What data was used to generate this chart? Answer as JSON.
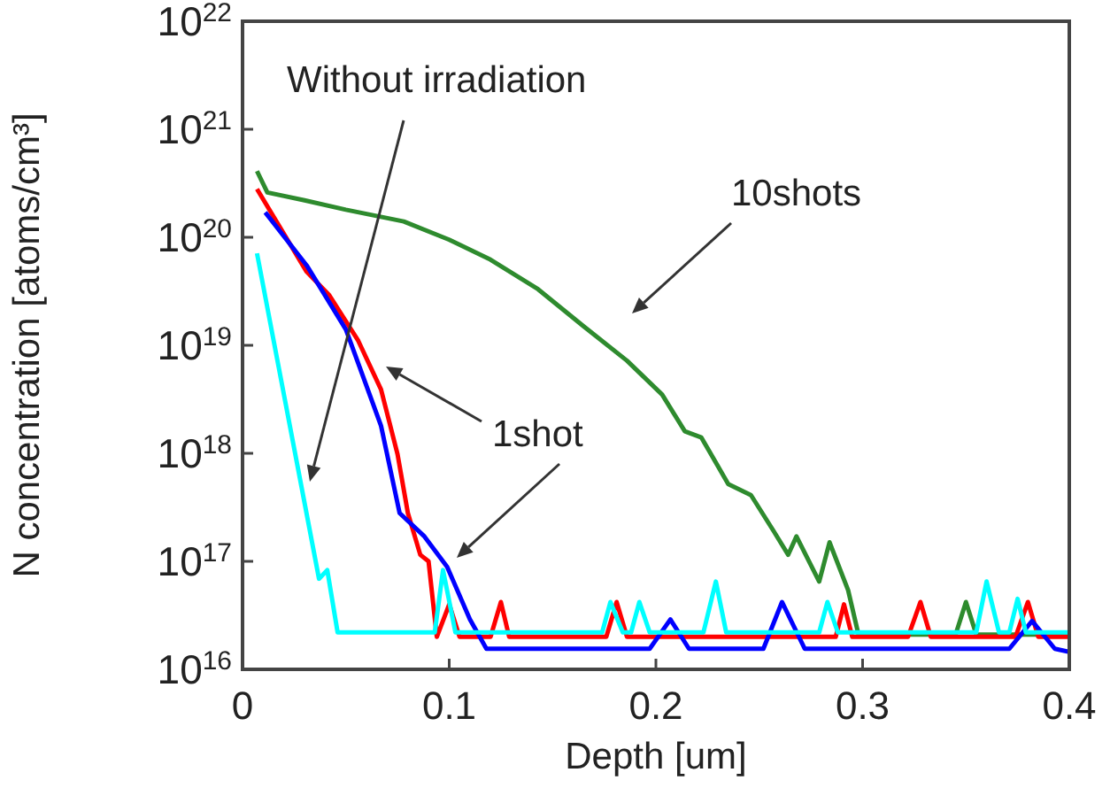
{
  "chart_data": {
    "type": "line",
    "xlabel": "Depth [um]",
    "ylabel": "N concentration [atoms/cm³]",
    "xlim": [
      0,
      0.4
    ],
    "xticks": [
      0,
      0.1,
      0.2,
      0.3,
      0.4
    ],
    "ylim": [
      1e+16,
      1e+22
    ],
    "log": true,
    "yticks": [
      {
        "value": 1e+16,
        "label": "10$^{16}$"
      },
      {
        "value": 1e+17,
        "label": "10$^{17}$"
      },
      {
        "value": 1e+18,
        "label": "10$^{18}$"
      },
      {
        "value": 1e+19,
        "label": "10$^{19}$"
      },
      {
        "value": 1e+20,
        "label": "10$^{20}$"
      },
      {
        "value": 1e+21,
        "label": "10$^{21}$"
      },
      {
        "value": 1e+22,
        "label": "10$^{22}$"
      }
    ],
    "grid": false,
    "marker": "none",
    "line_style": "solid",
    "annotations": [
      "Without irradiation",
      "10shots",
      "1shot"
    ],
    "series": [
      {
        "color": "#2e8b2e",
        "x": [
          0.007,
          0.012,
          0.03,
          0.05,
          0.078,
          0.1,
          0.12,
          0.143,
          0.165,
          0.186,
          0.203,
          0.214,
          0.222,
          0.235,
          0.246,
          0.257,
          0.264,
          0.268,
          0.279,
          0.284,
          0.293,
          0.298,
          0.345,
          0.35,
          0.355,
          0.4
        ],
        "values": [
          4.1e+20,
          2.6e+20,
          2.2e+20,
          1.8e+20,
          1.4e+20,
          9.5e+19,
          6.2e+19,
          3.3e+19,
          1.5e+19,
          7.2e+18,
          3.5e+18,
          1.6e+18,
          1.4e+18,
          5.2e+17,
          4.1e+17,
          1.9e+17,
          1.15e+17,
          1.7e+17,
          6.5e+16,
          1.5e+17,
          5.4e+16,
          2.1e+16,
          2.1e+16,
          4.2e+16,
          2.1e+16,
          2.1e+16
        ]
      },
      {
        "color": "#ff0000",
        "x": [
          0.007,
          0.031,
          0.042,
          0.056,
          0.067,
          0.075,
          0.08,
          0.086,
          0.09,
          0.094,
          0.1,
          0.105,
          0.12,
          0.125,
          0.129,
          0.176,
          0.181,
          0.186,
          0.287,
          0.291,
          0.295,
          0.322,
          0.328,
          0.333,
          0.374,
          0.38,
          0.385,
          0.4
        ],
        "values": [
          2.8e+20,
          4.8e+19,
          2.9e+19,
          1.1e+19,
          3.9e+18,
          9.8e+17,
          2.8e+17,
          1.15e+17,
          1e+17,
          2e+16,
          4e+16,
          2e+16,
          2e+16,
          4.2e+16,
          2e+16,
          2e+16,
          4.2e+16,
          2e+16,
          2e+16,
          4e+16,
          2e+16,
          2e+16,
          4.2e+16,
          2e+16,
          2e+16,
          4.2e+16,
          2e+16,
          2e+16
        ]
      },
      {
        "color": "#0000ff",
        "x": [
          0.011,
          0.031,
          0.05,
          0.067,
          0.076,
          0.088,
          0.099,
          0.11,
          0.118,
          0.197,
          0.207,
          0.216,
          0.252,
          0.261,
          0.272,
          0.371,
          0.382,
          0.393,
          0.4
        ],
        "values": [
          1.7e+20,
          5.5e+19,
          1.4e+19,
          1.8e+18,
          2.8e+17,
          1.7e+17,
          8.9e+16,
          2.9e+16,
          1.55e+16,
          1.55e+16,
          2.9e+16,
          1.55e+16,
          1.55e+16,
          4.2e+16,
          1.55e+16,
          1.55e+16,
          2.8e+16,
          1.55e+16,
          1.45e+16
        ]
      },
      {
        "color": "#00ffff",
        "x": [
          0.007,
          0.037,
          0.041,
          0.046,
          0.093,
          0.097,
          0.103,
          0.174,
          0.178,
          0.184,
          0.188,
          0.192,
          0.197,
          0.223,
          0.229,
          0.234,
          0.279,
          0.283,
          0.288,
          0.355,
          0.36,
          0.366,
          0.371,
          0.375,
          0.379,
          0.4
        ],
        "values": [
          7.1e+19,
          6.9e+16,
          8.3e+16,
          2.2e+16,
          2.2e+16,
          8.3e+16,
          2.2e+16,
          2.2e+16,
          4.2e+16,
          2.2e+16,
          2.2e+16,
          4.2e+16,
          2.2e+16,
          2.2e+16,
          6.5e+16,
          2.2e+16,
          2.2e+16,
          4.2e+16,
          2.2e+16,
          2.2e+16,
          6.5e+16,
          2.2e+16,
          2.2e+16,
          4.5e+16,
          2.2e+16,
          2.2e+16
        ]
      }
    ]
  }
}
